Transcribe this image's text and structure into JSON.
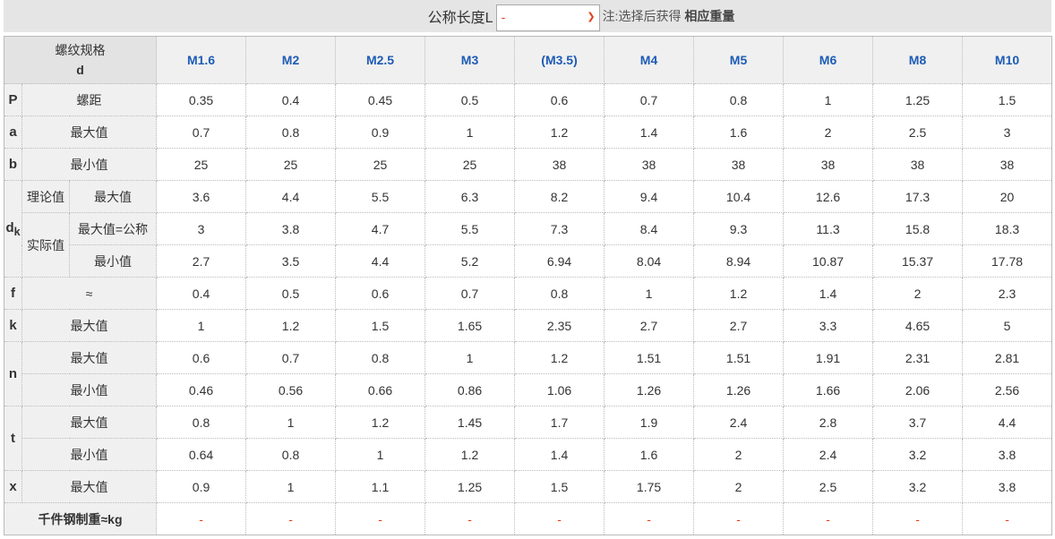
{
  "topbar": {
    "label": "公称长度L",
    "select_value": "-",
    "note": "注:选择后获得",
    "note_bold": "相应重量"
  },
  "header": {
    "spec_label": "螺纹规格",
    "spec_symbol": "d",
    "columns": [
      "M1.6",
      "M2",
      "M2.5",
      "M3",
      "(M3.5)",
      "M4",
      "M5",
      "M6",
      "M8",
      "M10"
    ]
  },
  "rows": [
    {
      "letter": "P",
      "label": "螺距",
      "values": [
        "0.35",
        "0.4",
        "0.45",
        "0.5",
        "0.6",
        "0.7",
        "0.8",
        "1",
        "1.25",
        "1.5"
      ]
    },
    {
      "letter": "a",
      "label": "最大值",
      "values": [
        "0.7",
        "0.8",
        "0.9",
        "1",
        "1.2",
        "1.4",
        "1.6",
        "2",
        "2.5",
        "3"
      ]
    },
    {
      "letter": "b",
      "label": "最小值",
      "values": [
        "25",
        "25",
        "25",
        "25",
        "38",
        "38",
        "38",
        "38",
        "38",
        "38"
      ]
    },
    {
      "letter": "d",
      "letter_sub": "k",
      "group": "理论值",
      "label": "最大值",
      "values": [
        "3.6",
        "4.4",
        "5.5",
        "6.3",
        "8.2",
        "9.4",
        "10.4",
        "12.6",
        "17.3",
        "20"
      ]
    },
    {
      "group": "实际值",
      "label": "最大值=公称",
      "values": [
        "3",
        "3.8",
        "4.7",
        "5.5",
        "7.3",
        "8.4",
        "9.3",
        "11.3",
        "15.8",
        "18.3"
      ]
    },
    {
      "label": "最小值",
      "values": [
        "2.7",
        "3.5",
        "4.4",
        "5.2",
        "6.94",
        "8.04",
        "8.94",
        "10.87",
        "15.37",
        "17.78"
      ]
    },
    {
      "letter": "f",
      "label": "≈",
      "values": [
        "0.4",
        "0.5",
        "0.6",
        "0.7",
        "0.8",
        "1",
        "1.2",
        "1.4",
        "2",
        "2.3"
      ]
    },
    {
      "letter": "k",
      "label": "最大值",
      "values": [
        "1",
        "1.2",
        "1.5",
        "1.65",
        "2.35",
        "2.7",
        "2.7",
        "3.3",
        "4.65",
        "5"
      ]
    },
    {
      "letter": "n",
      "label": "最大值",
      "values": [
        "0.6",
        "0.7",
        "0.8",
        "1",
        "1.2",
        "1.51",
        "1.51",
        "1.91",
        "2.31",
        "2.81"
      ]
    },
    {
      "label": "最小值",
      "values": [
        "0.46",
        "0.56",
        "0.66",
        "0.86",
        "1.06",
        "1.26",
        "1.26",
        "1.66",
        "2.06",
        "2.56"
      ]
    },
    {
      "letter": "t",
      "label": "最大值",
      "values": [
        "0.8",
        "1",
        "1.2",
        "1.45",
        "1.7",
        "1.9",
        "2.4",
        "2.8",
        "3.7",
        "4.4"
      ]
    },
    {
      "label": "最小值",
      "values": [
        "0.64",
        "0.8",
        "1",
        "1.2",
        "1.4",
        "1.6",
        "2",
        "2.4",
        "3.2",
        "3.8"
      ]
    },
    {
      "letter": "x",
      "label": "最大值",
      "values": [
        "0.9",
        "1",
        "1.1",
        "1.25",
        "1.5",
        "1.75",
        "2",
        "2.5",
        "3.2",
        "3.8"
      ]
    }
  ],
  "weight_row": {
    "label": "千件钢制重≈kg",
    "values": [
      "-",
      "-",
      "-",
      "-",
      "-",
      "-",
      "-",
      "-",
      "-",
      "-"
    ]
  },
  "colors": {
    "accent": "#1d5bb5",
    "red": "#e53d1a"
  }
}
